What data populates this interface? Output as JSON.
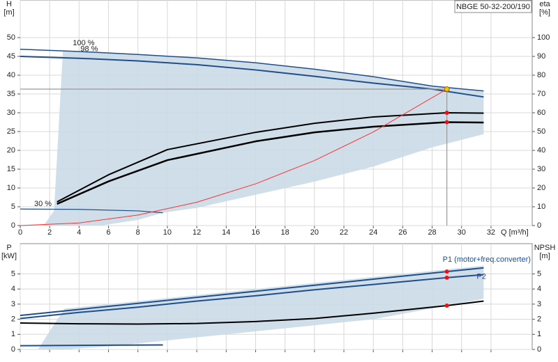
{
  "chart_data": [
    {
      "type": "line",
      "product": "NBGE 50-32-200/190",
      "y_label": "H",
      "y_unit": "[m]",
      "y2_label": "eta",
      "y2_unit": "[%]",
      "x_label": "Q [m³/h]",
      "xlim": [
        0,
        34.8
      ],
      "ylim": [
        0,
        60
      ],
      "y2lim": [
        0,
        120
      ],
      "xticks": [
        0,
        2,
        4,
        6,
        8,
        10,
        12,
        14,
        16,
        18,
        20,
        22,
        24,
        26,
        28,
        30,
        32
      ],
      "yticks": [
        0,
        5,
        10,
        15,
        20,
        25,
        30,
        35,
        40,
        45,
        50
      ],
      "y2ticks": [
        0,
        10,
        20,
        30,
        40,
        50,
        60,
        70,
        80,
        90,
        100
      ],
      "xtick_labels": true,
      "grid": true,
      "series": [
        {
          "style": "area",
          "color": "#cbdae7",
          "x": [
            2.9,
            8,
            12,
            16,
            20,
            24,
            28,
            31.5,
            31.5,
            28,
            24,
            20,
            16,
            12,
            9.7,
            8,
            5.5,
            1.6,
            2.3
          ],
          "values": [
            46.5,
            45.5,
            44.6,
            43.3,
            41.6,
            39.6,
            37.1,
            35.8,
            24.3,
            20.8,
            15.7,
            11.7,
            8.2,
            4.7,
            3.4,
            1.5,
            0,
            0,
            4
          ]
        },
        {
          "name": "100 %",
          "style": "line",
          "color": "#1f4e8c",
          "width": 1.5,
          "x": [
            0,
            4,
            8,
            12,
            16,
            20,
            24,
            28,
            31.5
          ],
          "values": [
            46.9,
            46.3,
            45.5,
            44.6,
            43.3,
            41.6,
            39.6,
            37.1,
            35.8
          ]
        },
        {
          "name": "98 %",
          "style": "line",
          "color": "#1f4e8c",
          "width": 2,
          "x": [
            0,
            4,
            8,
            12,
            16,
            20,
            24,
            28,
            31.5
          ],
          "values": [
            45,
            44.5,
            43.8,
            42.8,
            41.4,
            39.7,
            37.9,
            36.3,
            34.2
          ]
        },
        {
          "name": "30 %",
          "style": "line",
          "color": "#1f4e8c",
          "width": 1.2,
          "x": [
            0,
            4,
            8,
            9.7
          ],
          "values": [
            4.4,
            4.3,
            3.9,
            3.4
          ]
        },
        {
          "style": "line",
          "color": "#000000",
          "width": 2,
          "axis": "y2",
          "x": [
            2.5,
            6,
            10,
            16,
            20,
            24,
            29,
            31.5
          ],
          "values": [
            12.6,
            27,
            40.4,
            49.6,
            54.4,
            57.8,
            60,
            59.8
          ]
        },
        {
          "style": "line",
          "color": "#000000",
          "width": 2.5,
          "axis": "y2",
          "x": [
            2.5,
            6,
            10,
            16,
            20,
            24,
            29,
            31.5
          ],
          "values": [
            11.5,
            23.5,
            34.8,
            44.8,
            49.6,
            52.6,
            55,
            54.8
          ]
        },
        {
          "style": "line",
          "color": "#ff3030",
          "width": 1,
          "x": [
            0,
            4,
            8,
            12,
            16,
            20,
            24,
            29
          ],
          "values": [
            0,
            0.7,
            2.8,
            6.2,
            11.1,
            17.3,
            24.9,
            36.3
          ]
        },
        {
          "style": "dots",
          "color": "#f5c400",
          "guide": true,
          "x": [
            29
          ],
          "values": [
            36.3
          ]
        },
        {
          "style": "dots",
          "color": "#ee1111",
          "axis": "y2",
          "x": [
            29,
            29
          ],
          "values": [
            60,
            55
          ]
        }
      ]
    },
    {
      "type": "line",
      "y_label": "P",
      "y_unit": "[kW]",
      "y2_label": "NPSH",
      "y2_unit": "[m]",
      "xlim": [
        0,
        34.8
      ],
      "ylim": [
        0,
        7
      ],
      "y2lim": [
        0,
        7
      ],
      "xticks": [
        0,
        2,
        4,
        6,
        8,
        10,
        12,
        14,
        16,
        18,
        20,
        22,
        24,
        26,
        28,
        30,
        32
      ],
      "yticks": [
        0,
        1,
        2,
        3,
        4,
        5
      ],
      "y2ticks": [
        0,
        1,
        2,
        3,
        4,
        5
      ],
      "xtick_labels": false,
      "grid": true,
      "series": [
        {
          "style": "area",
          "color": "#cbdae7",
          "x": [
            3,
            8,
            16,
            24,
            31.5,
            31.5,
            24,
            16,
            10,
            6,
            3,
            1.2
          ],
          "values": [
            2.7,
            3.2,
            4.0,
            4.8,
            5.55,
            3.35,
            2.0,
            1.2,
            0.6,
            0.2,
            0,
            0
          ]
        },
        {
          "name": "P1 (motor+freq.converter)",
          "style": "line",
          "color": "#1f4e8c",
          "width": 2,
          "x": [
            0,
            4,
            8,
            12,
            16,
            20,
            24,
            29,
            31.5
          ],
          "values": [
            2.25,
            2.65,
            3.05,
            3.45,
            3.85,
            4.25,
            4.65,
            5.15,
            5.4
          ]
        },
        {
          "name": "P2",
          "style": "line",
          "color": "#1f4e8c",
          "width": 2,
          "x": [
            0,
            4,
            8,
            12,
            16,
            20,
            24,
            29,
            31.5
          ],
          "values": [
            2.05,
            2.45,
            2.8,
            3.2,
            3.55,
            3.95,
            4.3,
            4.75,
            4.95
          ]
        },
        {
          "style": "line",
          "color": "#000000",
          "width": 2,
          "axis": "y2",
          "x": [
            0,
            4,
            8,
            12,
            16,
            20,
            24,
            29,
            31.5
          ],
          "values": [
            1.75,
            1.7,
            1.68,
            1.72,
            1.85,
            2.05,
            2.4,
            2.9,
            3.2
          ]
        },
        {
          "style": "line",
          "color": "#1f4e8c",
          "width": 2,
          "x": [
            0,
            9.7
          ],
          "values": [
            0.25,
            0.3
          ]
        },
        {
          "style": "dots",
          "color": "#ee1111",
          "x": [
            29,
            29
          ],
          "values": [
            5.15,
            4.75
          ]
        },
        {
          "style": "dots",
          "color": "#ee1111",
          "axis": "y2",
          "x": [
            29
          ],
          "values": [
            2.9
          ]
        }
      ]
    }
  ]
}
